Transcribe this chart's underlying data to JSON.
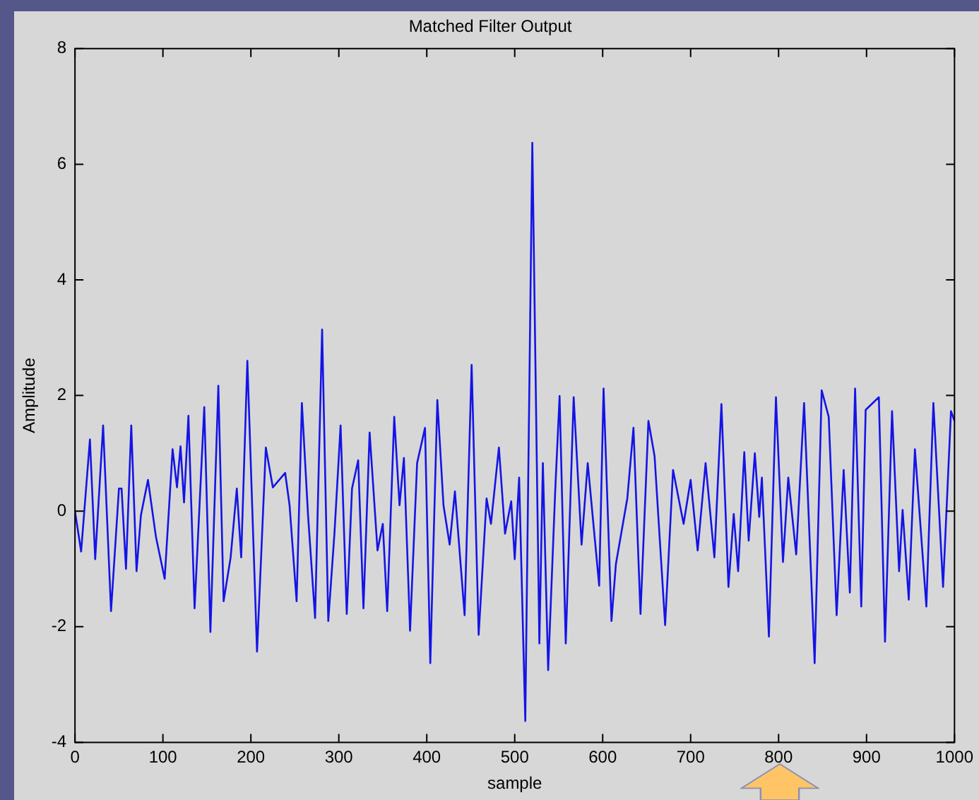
{
  "chart_data": {
    "type": "line",
    "title": "Matched Filter Output",
    "xlabel": "sample",
    "ylabel": "Amplitude",
    "xlim": [
      0,
      1000
    ],
    "xticks": [
      0,
      100,
      200,
      300,
      400,
      500,
      600,
      700,
      800,
      900,
      1000
    ],
    "ylim": [
      -4,
      8
    ],
    "yticks": [
      -4,
      -2,
      0,
      2,
      4,
      6,
      8
    ],
    "grid": false,
    "series": [
      {
        "color": "#1414e6",
        "x": [
          0,
          7,
          17,
          23,
          32,
          41,
          50,
          53,
          58,
          64,
          70,
          75,
          83,
          92,
          102,
          111,
          116,
          120,
          124,
          129,
          136,
          147,
          154,
          163,
          169,
          177,
          184,
          189,
          196,
          207,
          217,
          225,
          239,
          244,
          252,
          258,
          265,
          273,
          281,
          288,
          295,
          302,
          309,
          315,
          322,
          328,
          335,
          344,
          350,
          355,
          363,
          369,
          374,
          381,
          389,
          398,
          404,
          412,
          419,
          426,
          432,
          443,
          451,
          459,
          468,
          473,
          482,
          489,
          496,
          500,
          505,
          512,
          520,
          528,
          532,
          538,
          546,
          551,
          558,
          567,
          576,
          583,
          596,
          601,
          610,
          615,
          628,
          635,
          643,
          652,
          659,
          671,
          680,
          692,
          700,
          708,
          717,
          727,
          735,
          743,
          749,
          754,
          761,
          766,
          773,
          778,
          781,
          789,
          797,
          805,
          811,
          820,
          829,
          841,
          849,
          857,
          866,
          874,
          881,
          887,
          894,
          899,
          914,
          921,
          929,
          937,
          941,
          948,
          955,
          968,
          976,
          987,
          996,
          1000
        ],
        "values": [
          0.0,
          -0.7,
          1.24,
          -0.83,
          1.48,
          -1.73,
          0.39,
          0.39,
          -1.0,
          1.48,
          -1.04,
          -0.07,
          0.54,
          -0.44,
          -1.17,
          1.07,
          0.41,
          1.12,
          0.15,
          1.65,
          -1.68,
          1.8,
          -2.09,
          2.17,
          -1.56,
          -0.8,
          0.39,
          -0.8,
          2.6,
          -2.43,
          1.1,
          0.41,
          0.66,
          0.1,
          -1.56,
          1.87,
          -0.07,
          -1.85,
          3.14,
          -1.9,
          -0.39,
          1.48,
          -1.78,
          0.39,
          0.88,
          -1.68,
          1.36,
          -0.68,
          -0.22,
          -1.73,
          1.63,
          0.1,
          0.92,
          -2.07,
          0.83,
          1.44,
          -2.63,
          1.92,
          0.1,
          -0.58,
          0.34,
          -1.8,
          2.53,
          -2.14,
          0.22,
          -0.22,
          1.1,
          -0.39,
          0.17,
          -0.83,
          0.58,
          -3.63,
          6.37,
          -2.29,
          0.83,
          -2.75,
          0.34,
          1.99,
          -2.29,
          1.97,
          -0.58,
          0.83,
          -1.29,
          2.12,
          -1.9,
          -0.92,
          0.22,
          1.44,
          -1.78,
          1.56,
          0.95,
          -1.97,
          0.71,
          -0.22,
          0.54,
          -0.68,
          0.83,
          -0.8,
          1.85,
          -1.31,
          -0.05,
          -1.04,
          1.02,
          -0.51,
          1.0,
          -0.1,
          0.58,
          -2.17,
          1.97,
          -0.88,
          0.58,
          -0.75,
          1.87,
          -2.63,
          2.09,
          1.63,
          -1.8,
          0.71,
          -1.41,
          2.12,
          -1.65,
          1.75,
          1.97,
          -2.26,
          1.73,
          -1.04,
          0.02,
          -1.53,
          1.07,
          -1.65,
          1.87,
          -1.31,
          1.73,
          1.56
        ]
      }
    ]
  }
}
